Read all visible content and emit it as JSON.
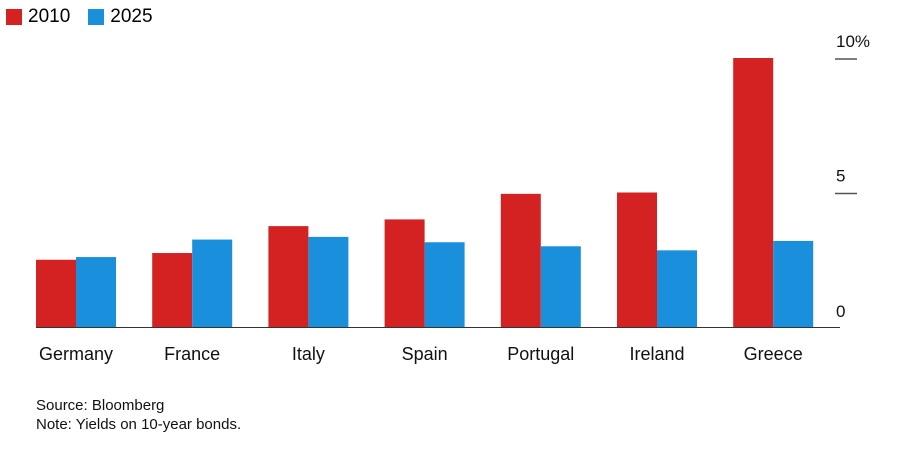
{
  "chart_data": {
    "type": "bar",
    "categories": [
      "Germany",
      "France",
      "Italy",
      "Spain",
      "Portugal",
      "Ireland",
      "Greece"
    ],
    "series": [
      {
        "name": "2010",
        "color": "#d42222",
        "values": [
          2.5,
          2.75,
          3.75,
          4.0,
          4.95,
          5.0,
          10.0
        ]
      },
      {
        "name": "2025",
        "color": "#1a8fdc",
        "values": [
          2.6,
          3.25,
          3.35,
          3.15,
          3.0,
          2.85,
          3.2
        ]
      }
    ],
    "yticks": [
      "10%",
      "5",
      "0"
    ],
    "ytick_values": [
      10,
      5,
      0
    ],
    "ylim": [
      0,
      10.5
    ],
    "axis_position": "right",
    "grid": false,
    "legend_position": "top-left"
  },
  "footer": {
    "source": "Source: Bloomberg",
    "note": "Note: Yields on 10-year bonds."
  }
}
